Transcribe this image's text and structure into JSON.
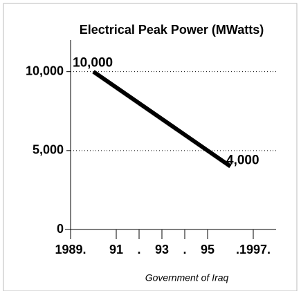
{
  "chart_data": {
    "type": "line",
    "title": "Electrical Peak Power (MWatts)",
    "source": "Government of Iraq",
    "x": [
      1990,
      1996
    ],
    "series": [
      {
        "name": null,
        "color": "#000000",
        "values": [
          10000,
          4000
        ],
        "value_labels": [
          "10,000",
          "4,000"
        ]
      }
    ],
    "xlim": [
      1989,
      1998
    ],
    "xticks": [
      {
        "value": 1989,
        "label": "1989."
      },
      {
        "value": 1991,
        "label": "91"
      },
      {
        "value": 1992,
        "label": "."
      },
      {
        "value": 1993,
        "label": "93"
      },
      {
        "value": 1994,
        "label": "."
      },
      {
        "value": 1995,
        "label": "95"
      },
      {
        "value": 1997,
        "label": ".1997."
      }
    ],
    "ylim": [
      0,
      12000
    ],
    "yticks": [
      0,
      {
        "value": 5000,
        "label": "5,000"
      },
      {
        "value": 10000,
        "label": "10,000"
      }
    ],
    "grid": true
  }
}
